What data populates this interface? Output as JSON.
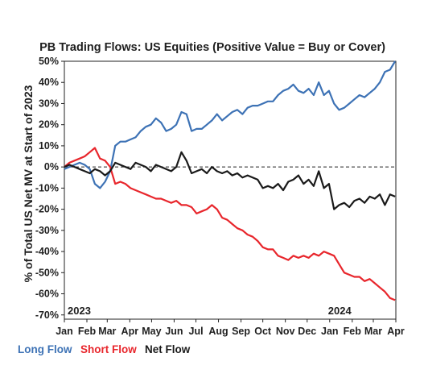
{
  "chart_data": {
    "type": "line",
    "title": "PB Trading Flows: US Equities (Positive Value = Buy or Cover)",
    "ylabel": "% of Total US Net MV at Start of 2023",
    "xlabel": "",
    "ylim": [
      -0.72,
      0.5
    ],
    "yticks": [
      0.5,
      0.4,
      0.3,
      0.2,
      0.1,
      0,
      -0.1,
      -0.2,
      -0.3,
      -0.4,
      -0.5,
      -0.6,
      -0.7
    ],
    "ytick_labels": [
      "50%",
      "40%",
      "30%",
      "20%",
      "10%",
      "0%",
      "-10%",
      "-20%",
      "-30%",
      "-40%",
      "-50%",
      "-60%",
      "-70%"
    ],
    "xlim": [
      "2023-01-01",
      "2024-04-01"
    ],
    "xtick_labels": [
      "Jan",
      "Feb",
      "Mar",
      "Apr",
      "May",
      "Jun",
      "Jul",
      "Aug",
      "Sep",
      "Oct",
      "Nov",
      "Dec",
      "Jan",
      "Feb",
      "Mar",
      "Apr"
    ],
    "xtick_dates": [
      "2023-01-01",
      "2023-02-01",
      "2023-03-01",
      "2023-04-01",
      "2023-05-01",
      "2023-06-01",
      "2023-07-01",
      "2023-08-01",
      "2023-09-01",
      "2023-10-01",
      "2023-11-01",
      "2023-12-01",
      "2024-01-01",
      "2024-02-01",
      "2024-03-01",
      "2024-04-01"
    ],
    "year_labels": [
      {
        "text": "2023",
        "date": "2023-01-01"
      },
      {
        "text": "2024",
        "date": "2024-01-01"
      }
    ],
    "zero_line": "dashed",
    "grid": false,
    "legend": "bottom",
    "series": [
      {
        "name": "Long Flow",
        "color": "#3d72b5",
        "x": [
          "2023-01-01",
          "2023-01-08",
          "2023-01-15",
          "2023-01-22",
          "2023-01-29",
          "2023-02-05",
          "2023-02-12",
          "2023-02-19",
          "2023-02-26",
          "2023-03-05",
          "2023-03-12",
          "2023-03-19",
          "2023-03-26",
          "2023-04-02",
          "2023-04-09",
          "2023-04-16",
          "2023-04-23",
          "2023-04-30",
          "2023-05-07",
          "2023-05-14",
          "2023-05-21",
          "2023-05-28",
          "2023-06-04",
          "2023-06-11",
          "2023-06-18",
          "2023-06-25",
          "2023-07-02",
          "2023-07-09",
          "2023-07-16",
          "2023-07-23",
          "2023-07-30",
          "2023-08-06",
          "2023-08-13",
          "2023-08-20",
          "2023-08-27",
          "2023-09-03",
          "2023-09-10",
          "2023-09-17",
          "2023-09-24",
          "2023-10-01",
          "2023-10-08",
          "2023-10-15",
          "2023-10-22",
          "2023-10-29",
          "2023-11-05",
          "2023-11-12",
          "2023-11-19",
          "2023-11-26",
          "2023-12-03",
          "2023-12-10",
          "2023-12-17",
          "2023-12-24",
          "2023-12-31",
          "2024-01-07",
          "2024-01-14",
          "2024-01-21",
          "2024-01-28",
          "2024-02-04",
          "2024-02-11",
          "2024-02-18",
          "2024-02-25",
          "2024-03-03",
          "2024-03-10",
          "2024-03-17",
          "2024-03-24",
          "2024-03-31"
        ],
        "values": [
          -0.01,
          0.0,
          0.01,
          0.02,
          0.01,
          -0.01,
          -0.08,
          -0.1,
          -0.07,
          -0.02,
          0.1,
          0.12,
          0.12,
          0.13,
          0.14,
          0.17,
          0.19,
          0.2,
          0.23,
          0.21,
          0.17,
          0.18,
          0.2,
          0.26,
          0.25,
          0.17,
          0.18,
          0.18,
          0.2,
          0.22,
          0.25,
          0.22,
          0.24,
          0.26,
          0.27,
          0.25,
          0.28,
          0.29,
          0.29,
          0.3,
          0.31,
          0.31,
          0.34,
          0.36,
          0.37,
          0.39,
          0.36,
          0.35,
          0.37,
          0.34,
          0.4,
          0.34,
          0.36,
          0.3,
          0.27,
          0.28,
          0.3,
          0.32,
          0.34,
          0.33,
          0.35,
          0.37,
          0.4,
          0.45,
          0.46,
          0.5
        ]
      },
      {
        "name": "Short Flow",
        "color": "#e8262c",
        "x": [
          "2023-01-01",
          "2023-01-08",
          "2023-01-15",
          "2023-01-22",
          "2023-01-29",
          "2023-02-05",
          "2023-02-12",
          "2023-02-19",
          "2023-02-26",
          "2023-03-05",
          "2023-03-12",
          "2023-03-19",
          "2023-03-26",
          "2023-04-02",
          "2023-04-09",
          "2023-04-16",
          "2023-04-23",
          "2023-04-30",
          "2023-05-07",
          "2023-05-14",
          "2023-05-21",
          "2023-05-28",
          "2023-06-04",
          "2023-06-11",
          "2023-06-18",
          "2023-06-25",
          "2023-07-02",
          "2023-07-09",
          "2023-07-16",
          "2023-07-23",
          "2023-07-30",
          "2023-08-06",
          "2023-08-13",
          "2023-08-20",
          "2023-08-27",
          "2023-09-03",
          "2023-09-10",
          "2023-09-17",
          "2023-09-24",
          "2023-10-01",
          "2023-10-08",
          "2023-10-15",
          "2023-10-22",
          "2023-10-29",
          "2023-11-05",
          "2023-11-12",
          "2023-11-19",
          "2023-11-26",
          "2023-12-03",
          "2023-12-10",
          "2023-12-17",
          "2023-12-24",
          "2023-12-31",
          "2024-01-07",
          "2024-01-14",
          "2024-01-21",
          "2024-01-28",
          "2024-02-04",
          "2024-02-11",
          "2024-02-18",
          "2024-02-25",
          "2024-03-03",
          "2024-03-10",
          "2024-03-17",
          "2024-03-24",
          "2024-03-31"
        ],
        "values": [
          0.0,
          0.02,
          0.03,
          0.04,
          0.05,
          0.07,
          0.09,
          0.04,
          0.03,
          0.0,
          -0.08,
          -0.07,
          -0.08,
          -0.1,
          -0.11,
          -0.12,
          -0.13,
          -0.14,
          -0.15,
          -0.15,
          -0.16,
          -0.17,
          -0.16,
          -0.18,
          -0.18,
          -0.19,
          -0.22,
          -0.21,
          -0.2,
          -0.18,
          -0.2,
          -0.24,
          -0.25,
          -0.27,
          -0.29,
          -0.3,
          -0.32,
          -0.33,
          -0.35,
          -0.38,
          -0.39,
          -0.39,
          -0.42,
          -0.43,
          -0.44,
          -0.42,
          -0.43,
          -0.42,
          -0.43,
          -0.41,
          -0.42,
          -0.4,
          -0.41,
          -0.42,
          -0.46,
          -0.5,
          -0.51,
          -0.52,
          -0.52,
          -0.54,
          -0.53,
          -0.55,
          -0.57,
          -0.59,
          -0.62,
          -0.63
        ]
      },
      {
        "name": "Net Flow",
        "color": "#1a1a1a",
        "x": [
          "2023-01-01",
          "2023-01-08",
          "2023-01-15",
          "2023-01-22",
          "2023-01-29",
          "2023-02-05",
          "2023-02-12",
          "2023-02-19",
          "2023-02-26",
          "2023-03-05",
          "2023-03-12",
          "2023-03-19",
          "2023-03-26",
          "2023-04-02",
          "2023-04-09",
          "2023-04-16",
          "2023-04-23",
          "2023-04-30",
          "2023-05-07",
          "2023-05-14",
          "2023-05-21",
          "2023-05-28",
          "2023-06-04",
          "2023-06-11",
          "2023-06-18",
          "2023-06-25",
          "2023-07-02",
          "2023-07-09",
          "2023-07-16",
          "2023-07-23",
          "2023-07-30",
          "2023-08-06",
          "2023-08-13",
          "2023-08-20",
          "2023-08-27",
          "2023-09-03",
          "2023-09-10",
          "2023-09-17",
          "2023-09-24",
          "2023-10-01",
          "2023-10-08",
          "2023-10-15",
          "2023-10-22",
          "2023-10-29",
          "2023-11-05",
          "2023-11-12",
          "2023-11-19",
          "2023-11-26",
          "2023-12-03",
          "2023-12-10",
          "2023-12-17",
          "2023-12-24",
          "2023-12-31",
          "2024-01-07",
          "2024-01-14",
          "2024-01-21",
          "2024-01-28",
          "2024-02-04",
          "2024-02-11",
          "2024-02-18",
          "2024-02-25",
          "2024-03-03",
          "2024-03-10",
          "2024-03-17",
          "2024-03-24",
          "2024-03-31"
        ],
        "values": [
          0.0,
          0.01,
          0.0,
          -0.01,
          -0.02,
          -0.03,
          -0.01,
          -0.02,
          -0.04,
          -0.02,
          0.02,
          0.01,
          0.0,
          -0.01,
          0.02,
          0.01,
          0.0,
          -0.02,
          0.01,
          0.0,
          -0.01,
          -0.02,
          0.0,
          0.07,
          0.03,
          -0.03,
          -0.02,
          -0.01,
          -0.03,
          0.0,
          -0.02,
          -0.03,
          -0.02,
          -0.04,
          -0.03,
          -0.05,
          -0.04,
          -0.05,
          -0.06,
          -0.1,
          -0.09,
          -0.1,
          -0.08,
          -0.11,
          -0.07,
          -0.06,
          -0.04,
          -0.08,
          -0.06,
          -0.09,
          -0.02,
          -0.1,
          -0.08,
          -0.2,
          -0.18,
          -0.17,
          -0.19,
          -0.16,
          -0.15,
          -0.17,
          -0.14,
          -0.15,
          -0.13,
          -0.18,
          -0.13,
          -0.14
        ]
      }
    ]
  }
}
